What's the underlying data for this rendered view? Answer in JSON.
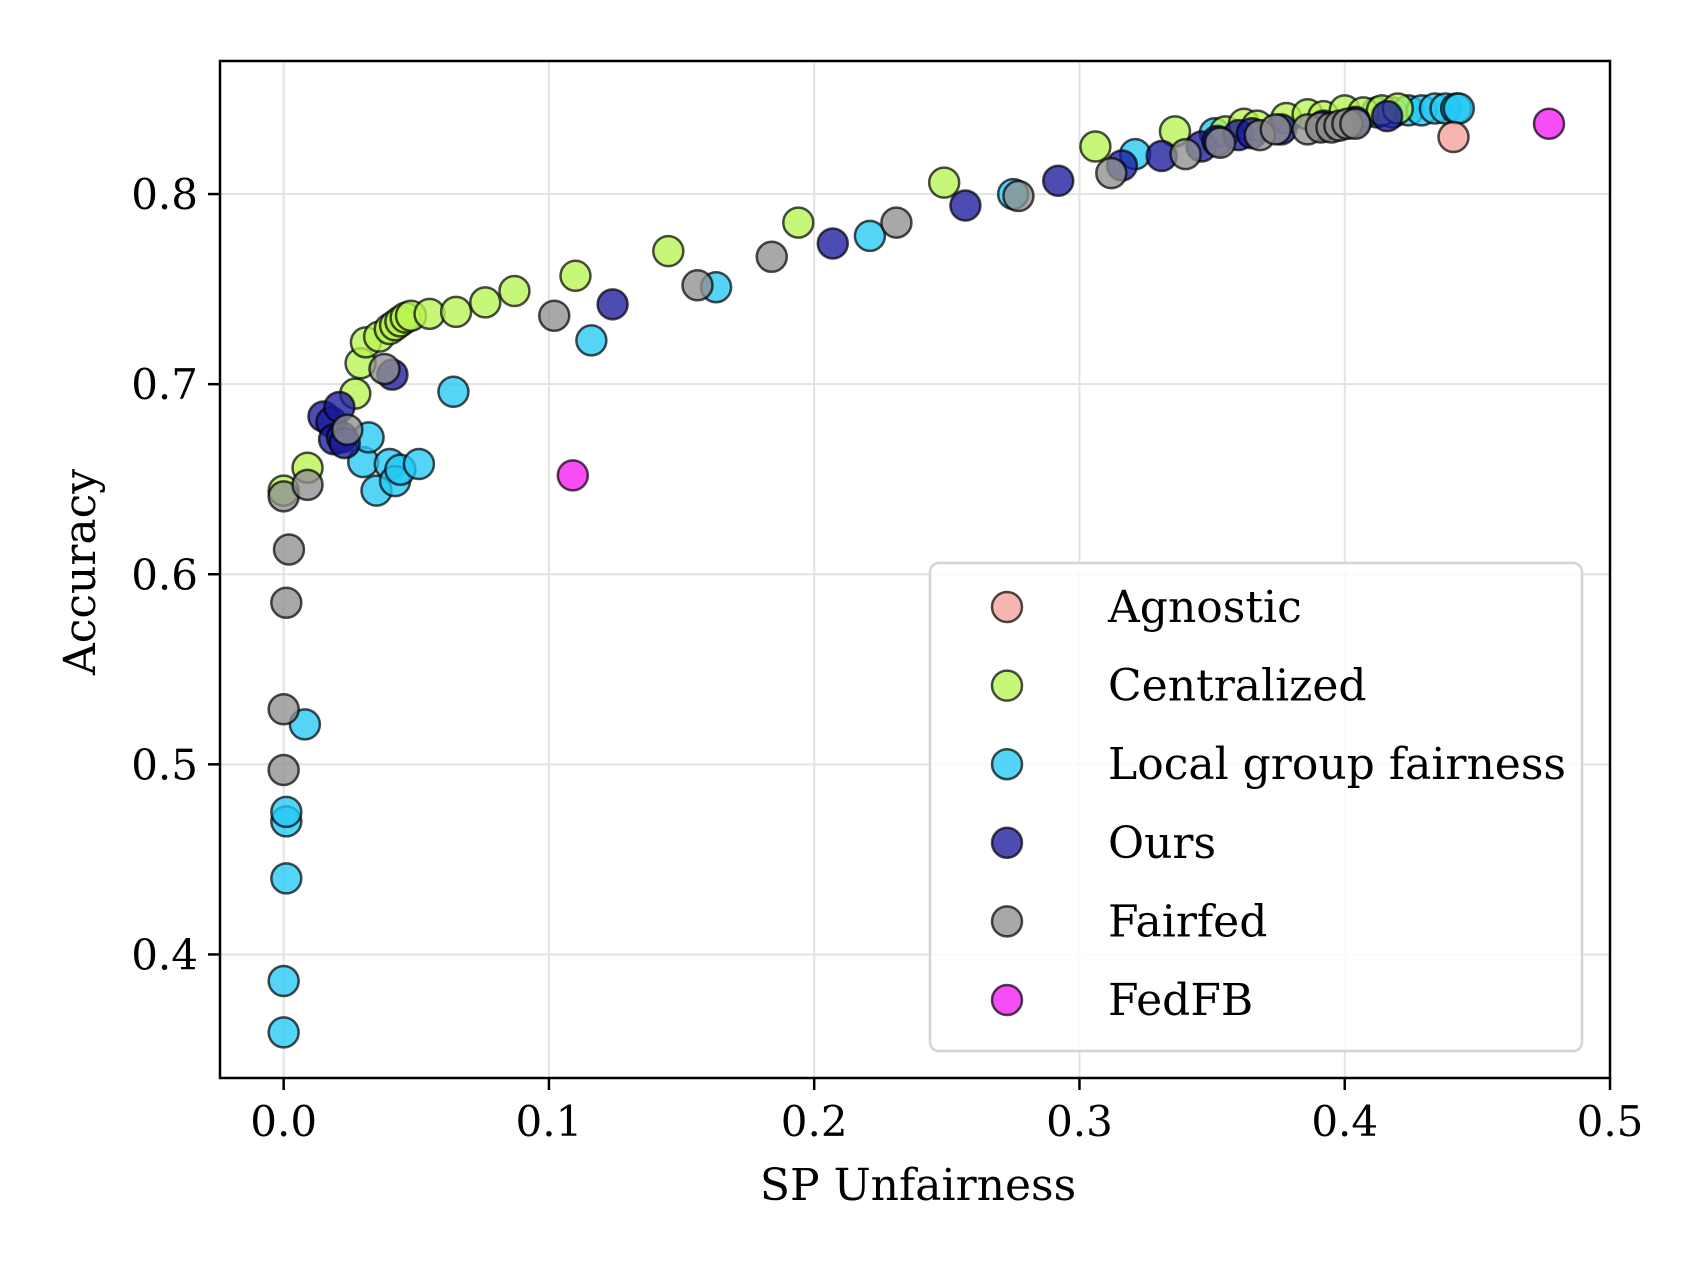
{
  "chart_data": {
    "type": "scatter",
    "title": "",
    "xlabel": "SP Unfairness",
    "ylabel": "Accuracy",
    "xlim": [
      -0.024,
      0.5
    ],
    "ylim": [
      0.335,
      0.87
    ],
    "xticks": [
      0.0,
      0.1,
      0.2,
      0.3,
      0.4,
      0.5
    ],
    "xtick_labels": [
      "0.0",
      "0.1",
      "0.2",
      "0.3",
      "0.4",
      "0.5"
    ],
    "yticks": [
      0.4,
      0.5,
      0.6,
      0.7,
      0.8
    ],
    "ytick_labels": [
      "0.4",
      "0.5",
      "0.6",
      "0.7",
      "0.8"
    ],
    "grid": true,
    "legend_position": "lower-right",
    "series": [
      {
        "name": "Agnostic",
        "color": "#f4a09a",
        "points": [
          [
            0.441,
            0.83
          ]
        ]
      },
      {
        "name": "Centralized",
        "color": "#b7f553",
        "points": [
          [
            0.0,
            0.644
          ],
          [
            0.009,
            0.656
          ],
          [
            0.027,
            0.695
          ],
          [
            0.029,
            0.711
          ],
          [
            0.031,
            0.722
          ],
          [
            0.036,
            0.725
          ],
          [
            0.04,
            0.729
          ],
          [
            0.042,
            0.731
          ],
          [
            0.044,
            0.733
          ],
          [
            0.046,
            0.735
          ],
          [
            0.048,
            0.736
          ],
          [
            0.055,
            0.737
          ],
          [
            0.065,
            0.738
          ],
          [
            0.076,
            0.743
          ],
          [
            0.087,
            0.749
          ],
          [
            0.11,
            0.757
          ],
          [
            0.145,
            0.77
          ],
          [
            0.194,
            0.785
          ],
          [
            0.249,
            0.806
          ],
          [
            0.306,
            0.825
          ],
          [
            0.336,
            0.833
          ],
          [
            0.355,
            0.833
          ],
          [
            0.362,
            0.837
          ],
          [
            0.367,
            0.836
          ],
          [
            0.378,
            0.84
          ],
          [
            0.386,
            0.842
          ],
          [
            0.392,
            0.841
          ],
          [
            0.4,
            0.844
          ],
          [
            0.407,
            0.843
          ],
          [
            0.414,
            0.844
          ],
          [
            0.42,
            0.845
          ]
        ]
      },
      {
        "name": "Local group fairness",
        "color": "#24c8f5",
        "points": [
          [
            0.0,
            0.359
          ],
          [
            0.0,
            0.386
          ],
          [
            0.001,
            0.44
          ],
          [
            0.001,
            0.47
          ],
          [
            0.001,
            0.475
          ],
          [
            0.008,
            0.521
          ],
          [
            0.03,
            0.659
          ],
          [
            0.032,
            0.672
          ],
          [
            0.035,
            0.644
          ],
          [
            0.04,
            0.658
          ],
          [
            0.042,
            0.649
          ],
          [
            0.044,
            0.655
          ],
          [
            0.051,
            0.658
          ],
          [
            0.064,
            0.696
          ],
          [
            0.116,
            0.723
          ],
          [
            0.163,
            0.751
          ],
          [
            0.221,
            0.778
          ],
          [
            0.275,
            0.8
          ],
          [
            0.321,
            0.821
          ],
          [
            0.351,
            0.832
          ],
          [
            0.412,
            0.843
          ],
          [
            0.418,
            0.843
          ],
          [
            0.424,
            0.844
          ],
          [
            0.429,
            0.844
          ],
          [
            0.434,
            0.845
          ],
          [
            0.438,
            0.845
          ],
          [
            0.442,
            0.845
          ],
          [
            0.443,
            0.845
          ]
        ]
      },
      {
        "name": "Ours",
        "color": "#1a1a9c",
        "points": [
          [
            0.015,
            0.683
          ],
          [
            0.018,
            0.68
          ],
          [
            0.019,
            0.671
          ],
          [
            0.021,
            0.688
          ],
          [
            0.022,
            0.672
          ],
          [
            0.023,
            0.669
          ],
          [
            0.041,
            0.705
          ],
          [
            0.124,
            0.742
          ],
          [
            0.207,
            0.774
          ],
          [
            0.257,
            0.794
          ],
          [
            0.292,
            0.807
          ],
          [
            0.316,
            0.815
          ],
          [
            0.331,
            0.82
          ],
          [
            0.346,
            0.825
          ],
          [
            0.352,
            0.828
          ],
          [
            0.36,
            0.831
          ],
          [
            0.365,
            0.832
          ],
          [
            0.376,
            0.834
          ],
          [
            0.392,
            0.836
          ],
          [
            0.404,
            0.838
          ],
          [
            0.416,
            0.841
          ]
        ]
      },
      {
        "name": "Fairfed",
        "color": "#8f8f8f",
        "points": [
          [
            0.0,
            0.641
          ],
          [
            0.0,
            0.497
          ],
          [
            0.0,
            0.529
          ],
          [
            0.001,
            0.585
          ],
          [
            0.002,
            0.613
          ],
          [
            0.009,
            0.647
          ],
          [
            0.024,
            0.676
          ],
          [
            0.038,
            0.708
          ],
          [
            0.102,
            0.736
          ],
          [
            0.156,
            0.752
          ],
          [
            0.184,
            0.767
          ],
          [
            0.231,
            0.785
          ],
          [
            0.277,
            0.799
          ],
          [
            0.312,
            0.811
          ],
          [
            0.34,
            0.821
          ],
          [
            0.353,
            0.827
          ],
          [
            0.368,
            0.831
          ],
          [
            0.374,
            0.834
          ],
          [
            0.386,
            0.834
          ],
          [
            0.391,
            0.835
          ],
          [
            0.395,
            0.835
          ],
          [
            0.398,
            0.836
          ],
          [
            0.401,
            0.837
          ],
          [
            0.404,
            0.837
          ]
        ]
      },
      {
        "name": "FedFB",
        "color": "#f51bf5",
        "points": [
          [
            0.109,
            0.652
          ],
          [
            0.477,
            0.837
          ]
        ]
      }
    ]
  }
}
